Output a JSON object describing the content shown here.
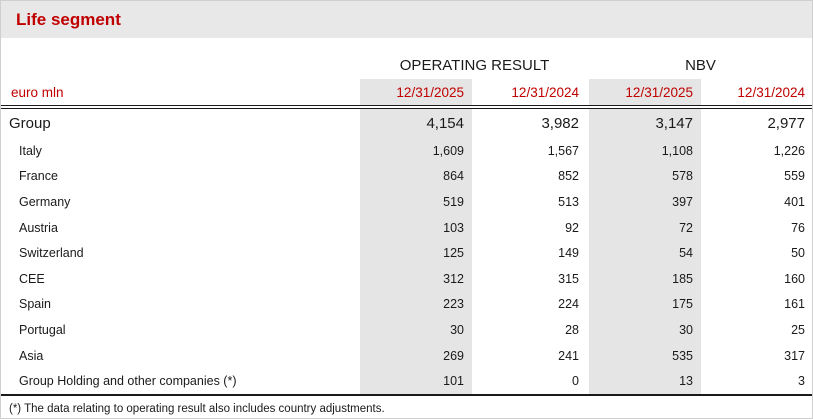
{
  "title": "Life segment",
  "unit_label": "euro mln",
  "footnote": "(*) The data relating to operating result also includes country adjustments.",
  "colors": {
    "accent_red": "#C00000",
    "header_band_gray": "#E8E8E8",
    "column_shade_gray": "#E5E5E5",
    "rule_black": "#1A1A1A"
  },
  "table": {
    "column_groups": [
      {
        "label": "OPERATING RESULT"
      },
      {
        "label": "NBV"
      }
    ],
    "date_headers": [
      "12/31/2025",
      "12/31/2024",
      "12/31/2025",
      "12/31/2024"
    ],
    "rows": [
      {
        "label": "Group",
        "values": [
          "4,154",
          "3,982",
          "3,147",
          "2,977"
        ]
      },
      {
        "label": "Italy",
        "values": [
          "1,609",
          "1,567",
          "1,108",
          "1,226"
        ]
      },
      {
        "label": "France",
        "values": [
          "864",
          "852",
          "578",
          "559"
        ]
      },
      {
        "label": "Germany",
        "values": [
          "519",
          "513",
          "397",
          "401"
        ]
      },
      {
        "label": "Austria",
        "values": [
          "103",
          "92",
          "72",
          "76"
        ]
      },
      {
        "label": "Switzerland",
        "values": [
          "125",
          "149",
          "54",
          "50"
        ]
      },
      {
        "label": "CEE",
        "values": [
          "312",
          "315",
          "185",
          "160"
        ]
      },
      {
        "label": "Spain",
        "values": [
          "223",
          "224",
          "175",
          "161"
        ]
      },
      {
        "label": "Portugal",
        "values": [
          "30",
          "28",
          "30",
          "25"
        ]
      },
      {
        "label": "Asia",
        "values": [
          "269",
          "241",
          "535",
          "317"
        ]
      },
      {
        "label": "Group Holding and other companies (*)",
        "values": [
          "101",
          "0",
          "13",
          "3"
        ]
      }
    ]
  }
}
